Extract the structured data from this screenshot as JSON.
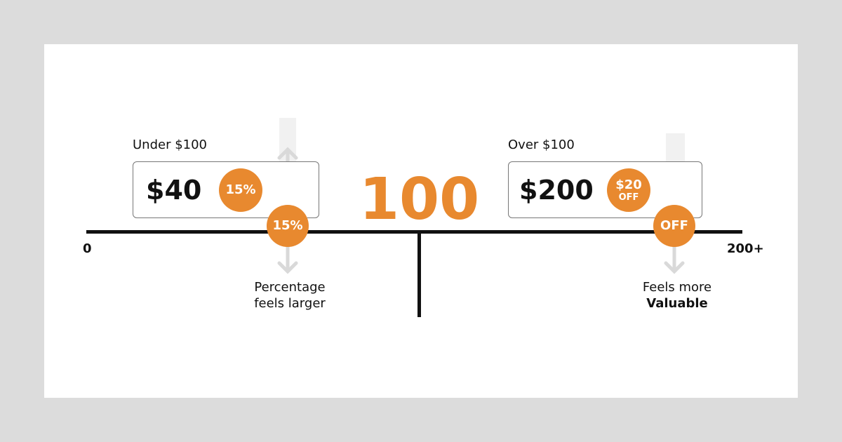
{
  "center_value": "100",
  "axis": {
    "min_label": "0",
    "max_label": "200+"
  },
  "left": {
    "heading": "Under $100",
    "price": "$40",
    "badge": "15%",
    "marker": "15%",
    "note_line1": "Percentage",
    "note_line2": "feels larger"
  },
  "right": {
    "heading": "Over $100",
    "price": "$200",
    "badge_line1": "$20",
    "badge_line2": "OFF",
    "marker": "OFF",
    "note_line1": "Feels more",
    "note_line2": "Valuable"
  },
  "colors": {
    "accent": "#E8892F",
    "arrow": "#d9d9d9"
  }
}
